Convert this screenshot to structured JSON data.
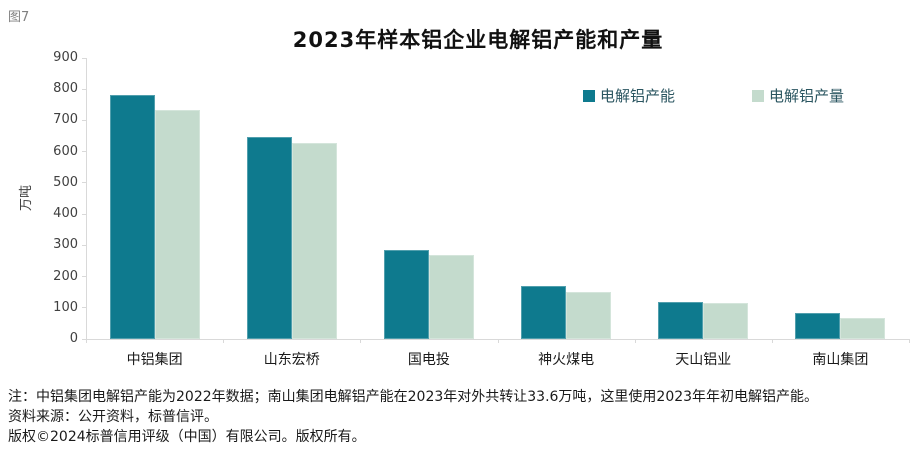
{
  "figure": {
    "label": "图7"
  },
  "chart_data": {
    "type": "bar",
    "title": "2023年样本铝企业电解铝产能和产量",
    "categories": [
      "中铝集团",
      "山东宏桥",
      "国电投",
      "神火煤电",
      "天山铝业",
      "南山集团"
    ],
    "series": [
      {
        "name": "电解铝产能",
        "color": "#0E7A8E",
        "values": [
          780,
          646,
          285,
          170,
          120,
          82
        ]
      },
      {
        "name": "电解铝产量",
        "color": "#C4DBCD",
        "values": [
          735,
          628,
          270,
          152,
          116,
          68
        ]
      }
    ],
    "xlabel": "",
    "ylabel": "万吨",
    "ylim": [
      0,
      900
    ],
    "ytick_step": 100,
    "grid": false,
    "legend_position": "top-right"
  },
  "notes": {
    "line1": "注：中铝集团电解铝产能为2022年数据；南山集团电解铝产能在2023年对外共转让33.6万吨，这里使用2023年年初电解铝产能。",
    "line2": "资料来源：公开资料，标普信评。",
    "line3": "版权©2024标普信用评级（中国）有限公司。版权所有。"
  },
  "colors": {
    "capacity": "#0E7A8E",
    "production": "#C4DBCD",
    "axis": "#D9D9D9",
    "tick_label": "#404040",
    "legend_text": "#2A5560",
    "figure_label": "#808080",
    "body_text": "#1A1A1A"
  }
}
